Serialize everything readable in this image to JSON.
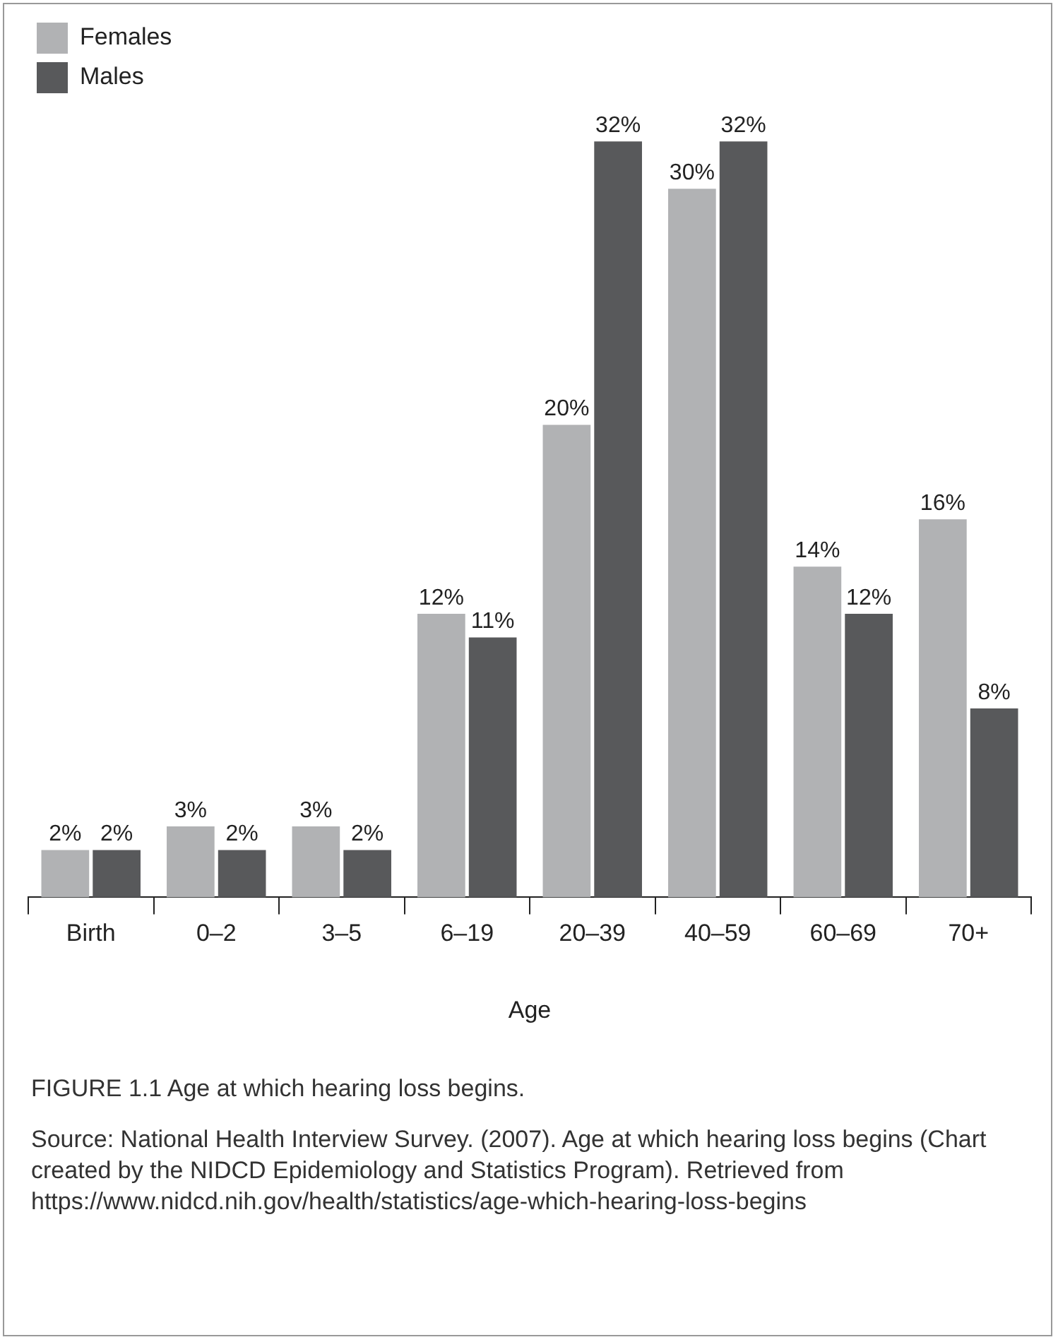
{
  "chart_data": {
    "type": "bar",
    "xlabel": "Age",
    "categories": [
      "Birth",
      "0–2",
      "3–5",
      "6–19",
      "20–39",
      "40–59",
      "60–69",
      "70+"
    ],
    "series": [
      {
        "name": "Females",
        "color": "#b1b2b4",
        "values": [
          2,
          3,
          3,
          12,
          20,
          30,
          14,
          16
        ],
        "value_labels": [
          "2%",
          "3%",
          "3%",
          "12%",
          "20%",
          "30%",
          "14%",
          "16%"
        ]
      },
      {
        "name": "Males",
        "color": "#58595b",
        "values": [
          2,
          2,
          2,
          11,
          32,
          32,
          12,
          8
        ],
        "value_labels": [
          "2%",
          "2%",
          "2%",
          "11%",
          "32%",
          "32%",
          "12%",
          "8%"
        ]
      }
    ],
    "legend": "top left",
    "grid": false,
    "annotations": [
      "FIGURE 1.1 Age at which hearing loss begins.",
      "Source: National Health Interview Survey. (2007). Age at which hearing loss begins (Chart created by the NIDCD Epidemiology and Statistics Program). Retrieved from https://www.nidcd.nih.gov/health/statistics/age-which-hearing-loss-begins"
    ]
  }
}
